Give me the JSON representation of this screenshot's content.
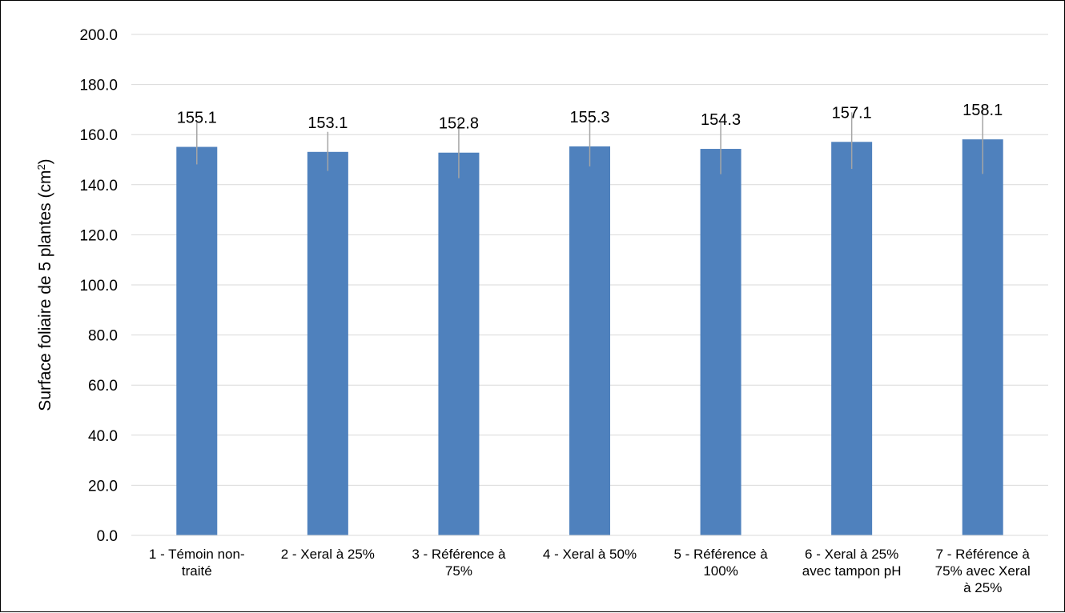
{
  "chart_data": {
    "type": "bar",
    "title": "",
    "xlabel": "",
    "ylabel_main": "Surface foliaire de 5 plantes (cm",
    "ylabel_sup": "2",
    "ylabel_end": ")",
    "ylim": [
      0,
      200
    ],
    "ytick_step": 20,
    "ytick_labels": [
      "0.0",
      "20.0",
      "40.0",
      "60.0",
      "80.0",
      "100.0",
      "120.0",
      "140.0",
      "160.0",
      "180.0",
      "200.0"
    ],
    "grid": true,
    "legend": "none",
    "categories": [
      [
        "1 - Témoin non-",
        "traité"
      ],
      [
        "2 - Xeral à 25%"
      ],
      [
        "3 - Référence à",
        "75%"
      ],
      [
        "4 - Xeral à 50%"
      ],
      [
        "5 - Référence à",
        "100%"
      ],
      [
        "6 - Xeral à 25%",
        "avec tampon pH"
      ],
      [
        "7 - Référence à",
        "75% avec Xeral",
        "à 25%"
      ]
    ],
    "values": [
      155.1,
      153.1,
      152.8,
      155.3,
      154.3,
      157.1,
      158.1
    ],
    "value_labels": [
      "155.1",
      "153.1",
      "152.8",
      "155.3",
      "154.3",
      "157.1",
      "158.1"
    ],
    "error_plus": [
      9.7,
      8.0,
      12.8,
      10.3,
      11.0,
      11.8,
      13.4
    ],
    "error_minus": [
      7.0,
      7.6,
      10.2,
      8.0,
      10.1,
      10.8,
      13.8
    ],
    "colors": {
      "bar": "#4F81BD",
      "grid": "#D9D9D9",
      "error": "#A5A5A5"
    }
  }
}
